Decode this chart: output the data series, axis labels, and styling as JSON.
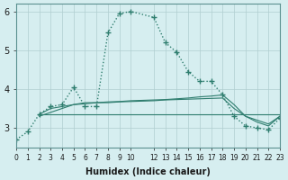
{
  "x_values": [
    0,
    1,
    2,
    3,
    4,
    5,
    6,
    7,
    8,
    9,
    10,
    12,
    13,
    14,
    15,
    16,
    17,
    18,
    19,
    20,
    21,
    22,
    23
  ],
  "line1": [
    2.7,
    2.9,
    3.35,
    3.55,
    3.6,
    4.05,
    3.55,
    3.55,
    5.45,
    5.95,
    6.0,
    5.85,
    5.2,
    4.95,
    4.45,
    4.2,
    4.2,
    3.85,
    3.3,
    3.05,
    3.0,
    2.95,
    3.25
  ],
  "line2": [
    null,
    null,
    3.35,
    3.35,
    3.35,
    3.35,
    3.35,
    3.35,
    3.35,
    3.35,
    3.35,
    3.35,
    3.35,
    3.35,
    3.35,
    3.35,
    3.35,
    3.35,
    3.35,
    3.35,
    3.35,
    3.35,
    3.35
  ],
  "line3": [
    null,
    null,
    3.3,
    3.4,
    3.5,
    3.6,
    3.65,
    3.65,
    3.65,
    3.67,
    3.68,
    3.7,
    3.72,
    3.73,
    3.74,
    3.75,
    3.76,
    3.77,
    3.5,
    3.3,
    3.2,
    3.1,
    3.3
  ],
  "line4": [
    null,
    null,
    3.35,
    3.5,
    3.55,
    3.6,
    3.62,
    3.65,
    3.67,
    3.68,
    3.7,
    3.72,
    3.73,
    3.75,
    3.77,
    3.8,
    3.82,
    3.85,
    3.6,
    3.3,
    3.15,
    3.05,
    3.3
  ],
  "color": "#2e7d6e",
  "bg_color": "#d6eef0",
  "grid_color": "#b0cdd0",
  "xlabel": "Humidex (Indice chaleur)",
  "ylim": [
    2.5,
    6.2
  ],
  "xlim": [
    0,
    23
  ],
  "yticks": [
    3,
    4,
    5,
    6
  ],
  "xticks": [
    0,
    1,
    2,
    3,
    4,
    5,
    6,
    7,
    8,
    9,
    10,
    12,
    13,
    14,
    15,
    16,
    17,
    18,
    19,
    20,
    21,
    22,
    23
  ]
}
